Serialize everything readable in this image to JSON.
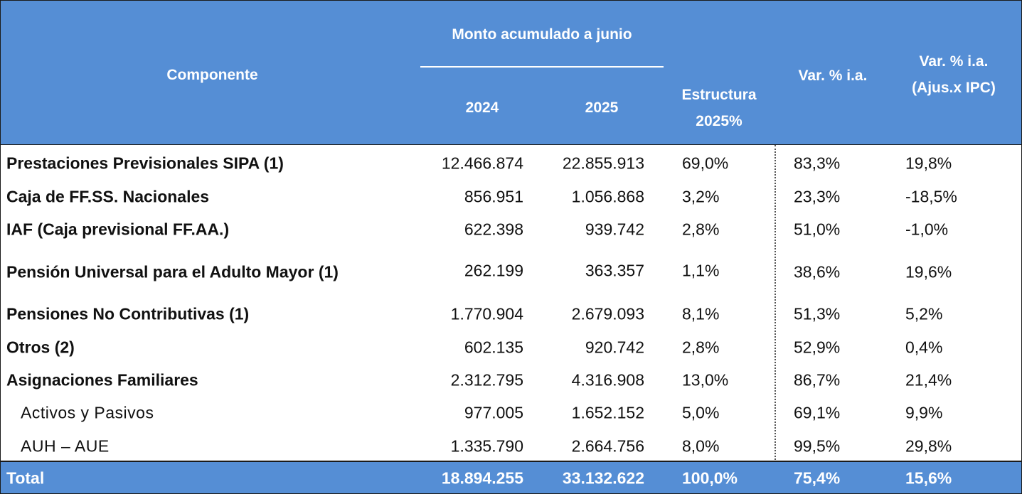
{
  "header": {
    "componente": "Componente",
    "monto": "Monto acumulado a junio",
    "y2024": "2024",
    "y2025": "2025",
    "estructura_line1": "Estructura",
    "estructura_line2": "2025%",
    "var": "Var. % i.a.",
    "ipc_line1": "Var. % i.a.",
    "ipc_line2": "(Ajus.x IPC)"
  },
  "rows": [
    {
      "label": "Prestaciones Previsionales SIPA (1)",
      "v2024": "12.466.874",
      "v2025": "22.855.913",
      "estructura": "69,0%",
      "var": "83,3%",
      "ipc": "19,8%"
    },
    {
      "label": "Caja de FF.SS. Nacionales",
      "v2024": "856.951",
      "v2025": "1.056.868",
      "estructura": "3,2%",
      "var": "23,3%",
      "ipc": "-18,5%"
    },
    {
      "label": "IAF (Caja previsional FF.AA.)",
      "v2024": "622.398",
      "v2025": "939.742",
      "estructura": "2,8%",
      "var": "51,0%",
      "ipc": "-1,0%"
    },
    {
      "label": "Pensión Universal para el Adulto Mayor (1)",
      "v2024": "262.199",
      "v2025": "363.357",
      "estructura": "1,1%",
      "var": "38,6%",
      "ipc": "19,6%"
    },
    {
      "label": "Pensiones No Contributivas (1)",
      "v2024": "1.770.904",
      "v2025": "2.679.093",
      "estructura": "8,1%",
      "var": "51,3%",
      "ipc": "5,2%"
    },
    {
      "label": "Otros (2)",
      "v2024": "602.135",
      "v2025": "920.742",
      "estructura": "2,8%",
      "var": "52,9%",
      "ipc": "0,4%"
    },
    {
      "label": "Asignaciones Familiares",
      "v2024": "2.312.795",
      "v2025": "4.316.908",
      "estructura": "13,0%",
      "var": "86,7%",
      "ipc": "21,4%"
    },
    {
      "label": "Activos y Pasivos",
      "v2024": "977.005",
      "v2025": "1.652.152",
      "estructura": "5,0%",
      "var": "69,1%",
      "ipc": "9,9%"
    },
    {
      "label": "AUH – AUE",
      "v2024": "1.335.790",
      "v2025": "2.664.756",
      "estructura": "8,0%",
      "var": "99,5%",
      "ipc": "29,8%"
    }
  ],
  "total": {
    "label": "Total",
    "v2024": "18.894.255",
    "v2025": "33.132.622",
    "estructura": "100,0%",
    "var": "75,4%",
    "ipc": "15,6%"
  },
  "colors": {
    "header_bg": "#558ed5",
    "header_text": "#ffffff",
    "body_text": "#111111"
  }
}
